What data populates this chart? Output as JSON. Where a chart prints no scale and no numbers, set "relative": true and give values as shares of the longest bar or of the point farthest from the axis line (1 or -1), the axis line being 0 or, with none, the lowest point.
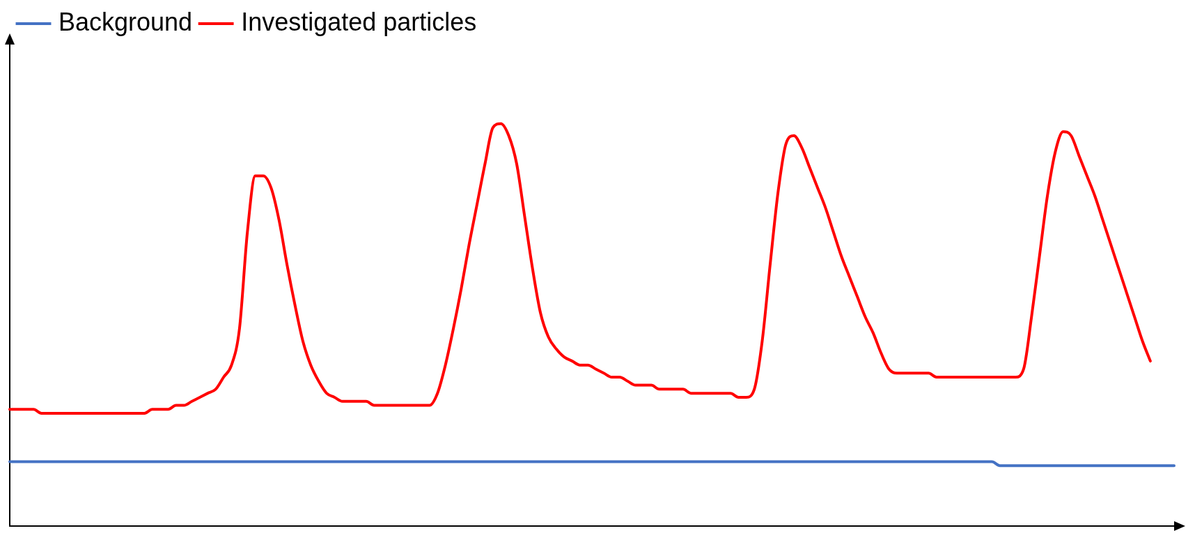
{
  "chart_data": {
    "type": "line",
    "relative": true,
    "legend": "top left",
    "marker": "none",
    "line_style": "solid",
    "grid": false,
    "tick_labels": false,
    "categories": [
      null,
      null,
      null,
      null,
      null,
      null,
      null,
      null,
      null,
      null,
      null,
      null,
      null,
      null,
      null,
      null,
      null,
      null,
      null,
      null,
      null,
      null,
      null,
      null,
      null,
      null,
      null,
      null,
      null,
      null,
      null,
      null,
      null,
      null,
      null,
      null,
      null,
      null,
      null,
      null,
      null,
      null,
      null,
      null,
      null,
      null,
      null,
      null,
      null,
      null,
      null,
      null,
      null,
      null,
      null,
      null,
      null,
      null,
      null,
      null,
      null,
      null,
      null,
      null,
      null,
      null,
      null,
      null,
      null,
      null,
      null,
      null,
      null,
      null,
      null,
      null,
      null,
      null,
      null,
      null,
      null,
      null,
      null,
      null,
      null,
      null,
      null,
      null,
      null,
      null,
      null,
      null,
      null,
      null,
      null,
      null,
      null,
      null,
      null,
      null,
      null,
      null,
      null,
      null,
      null,
      null,
      null,
      null,
      null,
      null,
      null,
      null,
      null,
      null,
      null,
      null,
      null,
      null,
      null,
      null,
      null,
      null,
      null,
      null,
      null,
      null,
      null,
      null,
      null,
      null,
      null,
      null,
      null,
      null,
      null,
      null,
      null,
      null,
      null,
      null,
      null,
      null,
      null,
      null,
      null,
      null,
      null,
      null
    ],
    "series": [
      {
        "name": "Background",
        "color": "#4472c4",
        "values": [
          0.16,
          0.16,
          0.16,
          0.16,
          0.16,
          0.16,
          0.16,
          0.16,
          0.16,
          0.16,
          0.16,
          0.16,
          0.16,
          0.16,
          0.16,
          0.16,
          0.16,
          0.16,
          0.16,
          0.16,
          0.16,
          0.16,
          0.16,
          0.16,
          0.16,
          0.16,
          0.16,
          0.16,
          0.16,
          0.16,
          0.16,
          0.16,
          0.16,
          0.16,
          0.16,
          0.16,
          0.16,
          0.16,
          0.16,
          0.16,
          0.16,
          0.16,
          0.16,
          0.16,
          0.16,
          0.16,
          0.16,
          0.16,
          0.16,
          0.16,
          0.16,
          0.16,
          0.16,
          0.16,
          0.16,
          0.16,
          0.16,
          0.16,
          0.16,
          0.16,
          0.16,
          0.16,
          0.16,
          0.16,
          0.16,
          0.16,
          0.16,
          0.16,
          0.16,
          0.16,
          0.16,
          0.16,
          0.16,
          0.16,
          0.16,
          0.16,
          0.16,
          0.16,
          0.16,
          0.16,
          0.16,
          0.16,
          0.16,
          0.16,
          0.16,
          0.16,
          0.16,
          0.16,
          0.16,
          0.16,
          0.16,
          0.16,
          0.16,
          0.16,
          0.16,
          0.16,
          0.16,
          0.16,
          0.16,
          0.16,
          0.16,
          0.16,
          0.16,
          0.16,
          0.16,
          0.16,
          0.16,
          0.16,
          0.16,
          0.16,
          0.16,
          0.16,
          0.16,
          0.16,
          0.16,
          0.16,
          0.16,
          0.16,
          0.16,
          0.16,
          0.16,
          0.16,
          0.16,
          0.16,
          0.16,
          0.15,
          0.15,
          0.15,
          0.15,
          0.15,
          0.15,
          0.15,
          0.15,
          0.15,
          0.15,
          0.15,
          0.15,
          0.15,
          0.15,
          0.15,
          0.15,
          0.15,
          0.15,
          0.15,
          0.15,
          0.15,
          0.15,
          0.15
        ]
      },
      {
        "name": "Investigated particles",
        "color": "#ff0000",
        "values": [
          0.29,
          0.29,
          0.29,
          0.29,
          0.28,
          0.28,
          0.28,
          0.28,
          0.28,
          0.28,
          0.28,
          0.28,
          0.28,
          0.28,
          0.28,
          0.28,
          0.28,
          0.28,
          0.29,
          0.29,
          0.29,
          0.3,
          0.3,
          0.31,
          0.32,
          0.33,
          0.34,
          0.37,
          0.4,
          0.49,
          0.73,
          0.87,
          0.87,
          0.84,
          0.76,
          0.65,
          0.55,
          0.46,
          0.4,
          0.36,
          0.33,
          0.32,
          0.31,
          0.31,
          0.31,
          0.31,
          0.3,
          0.3,
          0.3,
          0.3,
          0.3,
          0.3,
          0.3,
          0.3,
          0.33,
          0.4,
          0.49,
          0.59,
          0.7,
          0.8,
          0.9,
          0.99,
          1,
          0.97,
          0.9,
          0.77,
          0.64,
          0.53,
          0.47,
          0.44,
          0.42,
          0.41,
          0.4,
          0.4,
          0.39,
          0.38,
          0.37,
          0.37,
          0.36,
          0.35,
          0.35,
          0.35,
          0.34,
          0.34,
          0.34,
          0.34,
          0.33,
          0.33,
          0.33,
          0.33,
          0.33,
          0.33,
          0.32,
          0.32,
          0.34,
          0.46,
          0.65,
          0.83,
          0.95,
          0.97,
          0.94,
          0.89,
          0.84,
          0.79,
          0.73,
          0.67,
          0.62,
          0.57,
          0.52,
          0.48,
          0.43,
          0.39,
          0.38,
          0.38,
          0.38,
          0.38,
          0.38,
          0.37,
          0.37,
          0.37,
          0.37,
          0.37,
          0.37,
          0.37,
          0.37,
          0.37,
          0.37,
          0.37,
          0.39,
          0.52,
          0.67,
          0.82,
          0.93,
          0.98,
          0.97,
          0.92,
          0.87,
          0.82,
          0.76,
          0.7,
          0.64,
          0.58,
          0.52,
          0.46,
          0.41,
          null,
          null,
          null
        ]
      }
    ]
  }
}
